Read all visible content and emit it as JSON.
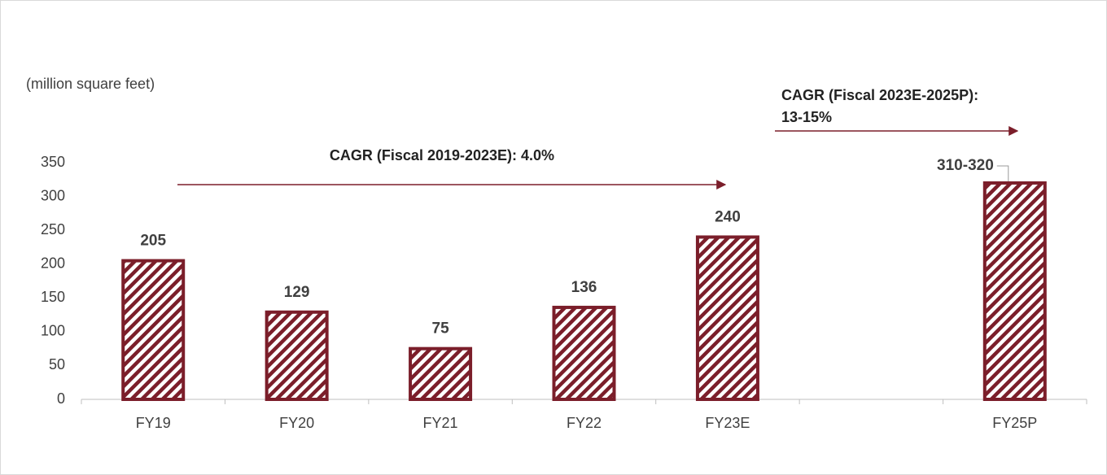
{
  "chart_data": {
    "type": "bar",
    "y_label": "(million square feet)",
    "annotations": [
      "CAGR (Fiscal 2019-2023E): 4.0%",
      "CAGR (Fiscal 2023E-2025P):",
      "13-15%"
    ],
    "categories": [
      "FY19",
      "FY20",
      "FY21",
      "FY22",
      "FY23E",
      null,
      "FY25P"
    ],
    "values": [
      205,
      129,
      75,
      136,
      240,
      null,
      320
    ],
    "value_labels": [
      "205",
      "129",
      "75",
      "136",
      "240",
      null,
      "310-320"
    ],
    "color": "#7b1e2a",
    "ylim": [
      0,
      350
    ],
    "yticks": [
      0,
      50,
      100,
      150,
      200,
      250,
      300,
      350
    ],
    "grid": false
  }
}
